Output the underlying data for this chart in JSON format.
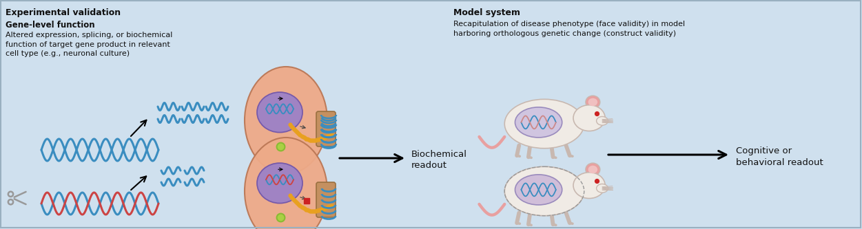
{
  "bg_color": "#cfe0ee",
  "title_left": "Experimental validation",
  "subtitle_left": "Gene-level function",
  "desc_left": "Altered expression, splicing, or biochemical\nfunction of target gene product in relevant\ncell type (e.g., neuronal culture)",
  "title_right": "Model system",
  "desc_right": "Recapitulation of disease phenotype (face validity) in model\nharboring orthologous genetic change (construct validity)",
  "label_bio": "Biochemical\nreadout",
  "label_cog": "Cognitive or\nbehavioral readout",
  "text_color": "#111111",
  "title_fontsize": 9.0,
  "body_fontsize": 8.5,
  "label_fontsize": 9.5,
  "dna_blue": "#3a8dc0",
  "dna_red": "#cc4444",
  "cell_outer": "#eeaa88",
  "cell_inner": "#9a80c8",
  "mouse_body": "#f0ebe5",
  "mouse_pink": "#e8a0a0",
  "mouse_dark": "#c8b8b0",
  "arrow_color": "#111111"
}
